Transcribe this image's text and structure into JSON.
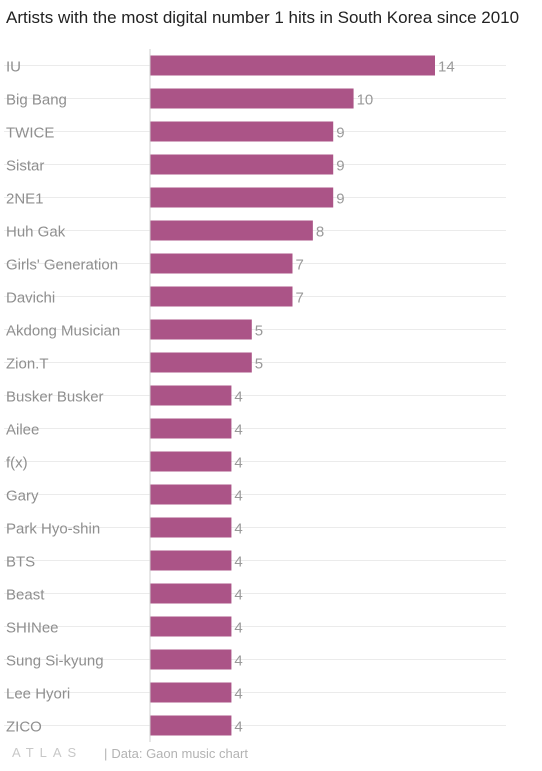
{
  "chart_data": {
    "type": "bar",
    "orientation": "horizontal",
    "title": "Artists with the most digital number 1 hits in South Korea since 2010",
    "categories": [
      "IU",
      "Big Bang",
      "TWICE",
      "Sistar",
      "2NE1",
      "Huh Gak",
      "Girls' Generation",
      "Davichi",
      "Akdong Musician",
      "Zion.T",
      "Busker Busker",
      "Ailee",
      "f(x)",
      "Gary",
      "Park Hyo-shin",
      "BTS",
      "Beast",
      "SHINee",
      "Sung Si-kyung",
      "Lee Hyori",
      "ZICO"
    ],
    "values": [
      14,
      10,
      9,
      9,
      9,
      8,
      7,
      7,
      5,
      5,
      4,
      4,
      4,
      4,
      4,
      4,
      4,
      4,
      4,
      4,
      4
    ],
    "xlim": [
      0,
      14
    ],
    "grid": true,
    "data_labels": true,
    "bar_color": "#ab5487"
  },
  "footer": {
    "logo": "ATLAS",
    "source": "Data: Gaon music chart"
  }
}
